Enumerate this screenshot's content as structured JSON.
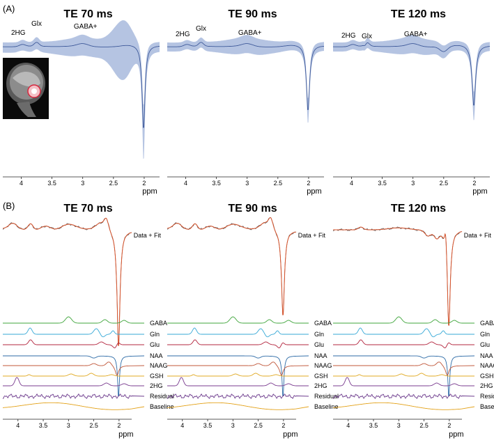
{
  "figure": {
    "panel_a_label": "(A)",
    "panel_b_label": "(B)"
  },
  "chart_data": [
    {
      "panel": "A",
      "type": "line",
      "subplots": [
        {
          "title": "TE 70 ms",
          "peak_labels": [
            {
              "text": "2HG",
              "ppm": 3.98
            },
            {
              "text": "Glx",
              "ppm": 3.75
            },
            {
              "text": "GABA+",
              "ppm": 3.0
            }
          ]
        },
        {
          "title": "TE 90 ms",
          "peak_labels": [
            {
              "text": "2HG",
              "ppm": 3.98
            },
            {
              "text": "Glx",
              "ppm": 3.75
            },
            {
              "text": "GABA+",
              "ppm": 3.0
            }
          ]
        },
        {
          "title": "TE 120 ms",
          "peak_labels": [
            {
              "text": "2HG",
              "ppm": 3.98
            },
            {
              "text": "Glx",
              "ppm": 3.75
            },
            {
              "text": "GABA+",
              "ppm": 3.0
            }
          ]
        }
      ],
      "x_ticks": [
        "4",
        "3.5",
        "3",
        "2.5",
        "2"
      ],
      "xlabel": "ppm",
      "xlim": [
        4.3,
        1.75
      ],
      "x_reversed": true,
      "inset": "sagittal-mri-with-tumor-roi",
      "colors": {
        "mean": "#3f5a9a",
        "band": "#b5c4e2"
      }
    },
    {
      "panel": "B",
      "type": "line",
      "subplots": [
        {
          "title": "TE 70 ms"
        },
        {
          "title": "TE 90 ms"
        },
        {
          "title": "TE 120 ms"
        }
      ],
      "x_ticks": [
        "4",
        "3.5",
        "3",
        "2.5",
        "2"
      ],
      "xlabel": "ppm",
      "xlim": [
        4.3,
        1.75
      ],
      "x_reversed": true,
      "series": [
        {
          "name": "Data + Fit",
          "color": "#d9532b"
        },
        {
          "name": "GABA",
          "color": "#3fa53b"
        },
        {
          "name": "Gln",
          "color": "#35a8d6"
        },
        {
          "name": "Glu",
          "color": "#b3243d"
        },
        {
          "name": "NAA",
          "color": "#2c6aa6"
        },
        {
          "name": "NAAG",
          "color": "#c0573a"
        },
        {
          "name": "GSH",
          "color": "#e0a820"
        },
        {
          "name": "2HG",
          "color": "#7a3b8f"
        },
        {
          "name": "Residual",
          "color": "#6c3a8c"
        },
        {
          "name": "Baseline",
          "color": "#e3a21a"
        }
      ]
    }
  ]
}
